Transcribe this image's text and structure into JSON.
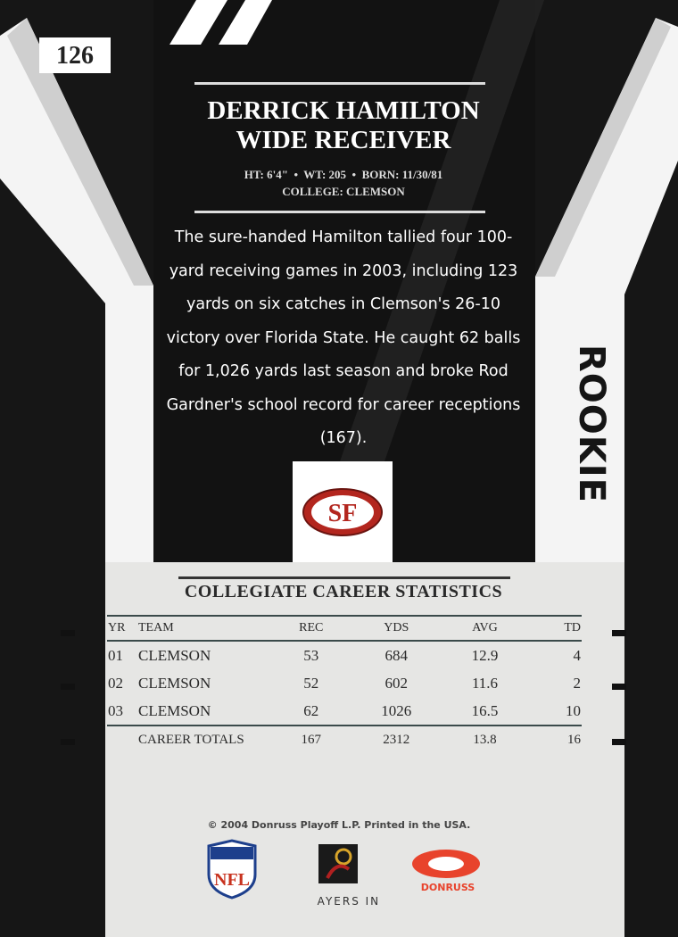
{
  "card_number": "126",
  "player": {
    "name": "DERRICK HAMILTON",
    "position": "WIDE RECEIVER"
  },
  "vitals": {
    "line1": "HT: 6'4\"  •  WT: 205  •  BORN: 11/30/81",
    "line2": "COLLEGE: CLEMSON"
  },
  "bio": "The sure-handed Hamilton tallied four 100-yard receiving games in 2003, including 123 yards on six catches in Clemson's 26-10 victory over Florida State. He caught 62 balls for 1,026 yards last season and broke Rod Gardner's school record for career receptions (167).",
  "team_logo": {
    "text": "SF",
    "color": "#b3261e"
  },
  "badge": "ROOKIE",
  "stats": {
    "title": "COLLEGIATE CAREER STATISTICS",
    "headers": [
      "YR",
      "TEAM",
      "REC",
      "YDS",
      "AVG",
      "TD"
    ],
    "rows": [
      [
        "01",
        "CLEMSON",
        "53",
        "684",
        "12.9",
        "4"
      ],
      [
        "02",
        "CLEMSON",
        "52",
        "602",
        "11.6",
        "2"
      ],
      [
        "03",
        "CLEMSON",
        "62",
        "1026",
        "16.5",
        "10"
      ]
    ],
    "totals": {
      "label": "CAREER TOTALS",
      "rec": "167",
      "yds": "2312",
      "avg": "13.8",
      "td": "16"
    }
  },
  "footer": {
    "copyright": "© 2004 Donruss Playoff L.P.  Printed in the USA.",
    "logos": {
      "nfl": "NFL",
      "players": "PLAYERS INC",
      "donruss": "DONRUSS"
    }
  }
}
